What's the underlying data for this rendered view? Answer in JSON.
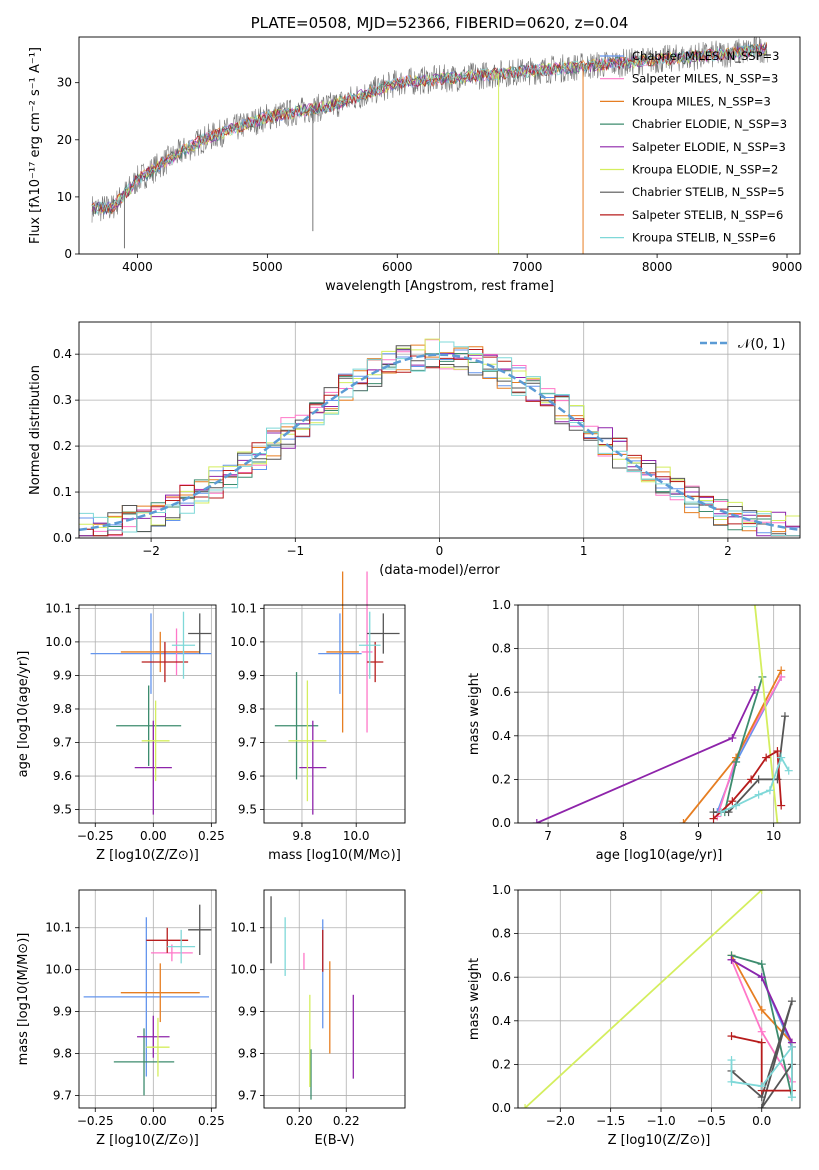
{
  "colors": {
    "chabrier_miles": "#6495ed",
    "salpeter_miles": "#ff77c8",
    "kroupa_miles": "#e67e22",
    "chabrier_elodie": "#3d8c6e",
    "salpeter_elodie": "#8e24aa",
    "kroupa_elodie": "#d4ee5e",
    "chabrier_stelib": "#555555",
    "salpeter_stelib": "#b71c1c",
    "kroupa_stelib": "#7fd8d8",
    "gauss": "#5b9bd5",
    "data_line": "#777777"
  },
  "chart_data": [
    {
      "type": "line",
      "title": "PLATE=0508, MJD=52366, FIBERID=0620, z=0.04",
      "xlabel": "wavelength [Angstrom, rest frame]",
      "ylabel": "Flux [fλ10⁻¹⁷ erg cm⁻² s⁻¹ A⁻¹]",
      "xlim": [
        3550,
        9100
      ],
      "ylim": [
        0,
        38
      ],
      "xticks": [
        "4000",
        "5000",
        "6000",
        "7000",
        "8000",
        "9000"
      ],
      "yticks": [
        "0",
        "10",
        "20",
        "30"
      ],
      "legend_position": "upper-right",
      "legend": [
        {
          "label": "Chabrier MILES, N_SSP=3",
          "color_key": "chabrier_miles"
        },
        {
          "label": "Salpeter MILES, N_SSP=3",
          "color_key": "salpeter_miles"
        },
        {
          "label": "Kroupa MILES, N_SSP=3",
          "color_key": "kroupa_miles"
        },
        {
          "label": "Chabrier ELODIE, N_SSP=3",
          "color_key": "chabrier_elodie"
        },
        {
          "label": "Salpeter ELODIE, N_SSP=3",
          "color_key": "salpeter_elodie"
        },
        {
          "label": "Kroupa ELODIE, N_SSP=2",
          "color_key": "kroupa_elodie"
        },
        {
          "label": "Chabrier STELIB, N_SSP=5",
          "color_key": "chabrier_stelib"
        },
        {
          "label": "Salpeter STELIB, N_SSP=6",
          "color_key": "salpeter_stelib"
        },
        {
          "label": "Kroupa STELIB, N_SSP=6",
          "color_key": "kroupa_stelib"
        }
      ],
      "spectrum_anchors": {
        "x": [
          3650,
          3800,
          4000,
          4200,
          4500,
          5000,
          5500,
          6000,
          6500,
          7000,
          7500,
          8000,
          8500,
          8850
        ],
        "y": [
          8,
          8,
          13,
          16,
          20,
          24,
          26,
          30,
          31,
          32,
          33,
          34,
          35,
          36
        ]
      },
      "spectrum_spikes": [
        {
          "x": 5350,
          "y": 4
        },
        {
          "x": 6780,
          "y": 0
        },
        {
          "x": 7430,
          "y": 0
        },
        {
          "x": 3900,
          "y": 1
        }
      ]
    },
    {
      "type": "histogram",
      "xlabel": "(data-model)/error",
      "ylabel": "Normed distribution",
      "xlim": [
        -2.5,
        2.5
      ],
      "ylim": [
        0,
        0.47
      ],
      "xticks": [
        "−2",
        "−1",
        "0",
        "1",
        "2"
      ],
      "yticks": [
        "0.0",
        "0.1",
        "0.2",
        "0.3",
        "0.4"
      ],
      "legend_position": "upper-right",
      "legend": [
        {
          "label": "𝒩(0, 1)",
          "color_key": "gauss",
          "style": "dashed"
        }
      ],
      "bin_width": 0.1,
      "gaussian": {
        "mu": 0,
        "sigma": 1
      }
    },
    {
      "type": "scatter-errorbar",
      "xlabel": "Z [log10(Z/Z⊙)]",
      "ylabel": "age [log10(age/yr)]",
      "xlim": [
        -0.32,
        0.27
      ],
      "ylim": [
        9.46,
        10.11
      ],
      "xticks": [
        "−0.25",
        "0.00",
        "0.25"
      ],
      "yticks": [
        "9.5",
        "9.6",
        "9.7",
        "9.8",
        "9.9",
        "10.0",
        "10.1"
      ],
      "series": [
        {
          "color_key": "chabrier_miles",
          "x": -0.01,
          "y": 9.965,
          "xerr": 0.26,
          "yerr": 0.12
        },
        {
          "color_key": "salpeter_miles",
          "x": 0.1,
          "y": 9.97,
          "xerr": 0.09,
          "yerr": 0.07
        },
        {
          "color_key": "kroupa_miles",
          "x": 0.03,
          "y": 9.97,
          "xerr": 0.17,
          "yerr": 0.06
        },
        {
          "color_key": "chabrier_elodie",
          "x": -0.02,
          "y": 9.75,
          "xerr": 0.14,
          "yerr": 0.12
        },
        {
          "color_key": "salpeter_elodie",
          "x": 0.0,
          "y": 9.625,
          "xerr": 0.08,
          "yerr": 0.14
        },
        {
          "color_key": "kroupa_elodie",
          "x": 0.01,
          "y": 9.705,
          "xerr": 0.06,
          "yerr": 0.12
        },
        {
          "color_key": "chabrier_stelib",
          "x": 0.2,
          "y": 10.025,
          "xerr": 0.05,
          "yerr": 0.06
        },
        {
          "color_key": "salpeter_stelib",
          "x": 0.05,
          "y": 9.94,
          "xerr": 0.1,
          "yerr": 0.06
        },
        {
          "color_key": "kroupa_stelib",
          "x": 0.13,
          "y": 9.99,
          "xerr": 0.05,
          "yerr": 0.1
        }
      ]
    },
    {
      "type": "scatter-errorbar",
      "xlabel": "mass [log10(M/M⊙)]",
      "ylabel": "",
      "xlim": [
        9.66,
        10.18
      ],
      "ylim": [
        9.46,
        10.11
      ],
      "xticks": [
        "9.8",
        "10.0"
      ],
      "yticks": [
        "9.5",
        "9.6",
        "9.7",
        "9.8",
        "9.9",
        "10.0",
        "10.1"
      ],
      "series": [
        {
          "color_key": "chabrier_miles",
          "x": 9.94,
          "y": 9.965,
          "xerr": 0.08,
          "yerr": 0.12
        },
        {
          "color_key": "salpeter_miles",
          "x": 10.04,
          "y": 9.97,
          "xerr": 0.02,
          "yerr": 0.24
        },
        {
          "color_key": "kroupa_miles",
          "x": 9.95,
          "y": 9.97,
          "xerr": 0.06,
          "yerr": 0.24
        },
        {
          "color_key": "chabrier_elodie",
          "x": 9.78,
          "y": 9.75,
          "xerr": 0.08,
          "yerr": 0.16
        },
        {
          "color_key": "salpeter_elodie",
          "x": 9.84,
          "y": 9.625,
          "xerr": 0.05,
          "yerr": 0.14
        },
        {
          "color_key": "kroupa_elodie",
          "x": 9.82,
          "y": 9.705,
          "xerr": 0.07,
          "yerr": 0.18
        },
        {
          "color_key": "chabrier_stelib",
          "x": 10.1,
          "y": 10.025,
          "xerr": 0.06,
          "yerr": 0.06
        },
        {
          "color_key": "salpeter_stelib",
          "x": 10.07,
          "y": 9.94,
          "xerr": 0.03,
          "yerr": 0.06
        },
        {
          "color_key": "kroupa_stelib",
          "x": 10.05,
          "y": 9.99,
          "xerr": 0.04,
          "yerr": 0.1
        }
      ]
    },
    {
      "type": "line",
      "xlabel": "age [log10(age/yr)]",
      "ylabel": "mass weight",
      "xlim": [
        6.6,
        10.35
      ],
      "ylim": [
        0,
        1.0
      ],
      "xticks": [
        "7",
        "8",
        "9",
        "10"
      ],
      "yticks": [
        "0.0",
        "0.2",
        "0.4",
        "0.6",
        "0.8",
        "1.0"
      ],
      "series": [
        {
          "color_key": "chabrier_miles",
          "x": [
            9.25,
            9.5,
            10.1
          ],
          "y": [
            0.05,
            0.28,
            0.67
          ]
        },
        {
          "color_key": "salpeter_miles",
          "x": [
            9.25,
            9.5,
            10.1
          ],
          "y": [
            0.03,
            0.3,
            0.67
          ]
        },
        {
          "color_key": "kroupa_miles",
          "x": [
            8.8,
            9.5,
            10.1
          ],
          "y": [
            0.0,
            0.3,
            0.7
          ]
        },
        {
          "color_key": "chabrier_elodie",
          "x": [
            9.35,
            9.5,
            9.85
          ],
          "y": [
            0.05,
            0.28,
            0.67
          ]
        },
        {
          "color_key": "salpeter_elodie",
          "x": [
            6.85,
            9.45,
            9.75
          ],
          "y": [
            0.0,
            0.39,
            0.61
          ]
        },
        {
          "color_key": "kroupa_elodie",
          "x": [
            9.75,
            10.05
          ],
          "y": [
            1.0,
            0.0
          ]
        },
        {
          "color_key": "chabrier_stelib",
          "x": [
            9.2,
            9.4,
            9.8,
            10.05,
            10.15
          ],
          "y": [
            0.05,
            0.05,
            0.2,
            0.2,
            0.49
          ]
        },
        {
          "color_key": "salpeter_stelib",
          "x": [
            9.2,
            9.45,
            9.7,
            9.9,
            10.05,
            10.1
          ],
          "y": [
            0.02,
            0.1,
            0.2,
            0.3,
            0.33,
            0.08
          ]
        },
        {
          "color_key": "kroupa_stelib",
          "x": [
            9.3,
            9.5,
            9.8,
            9.95,
            10.1,
            10.2
          ],
          "y": [
            0.05,
            0.08,
            0.13,
            0.15,
            0.3,
            0.24
          ]
        }
      ]
    },
    {
      "type": "scatter-errorbar",
      "xlabel": "Z [log10(Z/Z⊙)]",
      "ylabel": "mass [log10(M/M⊙)]",
      "xlim": [
        -0.32,
        0.27
      ],
      "ylim": [
        9.67,
        10.19
      ],
      "xticks": [
        "−0.25",
        "0.00",
        "0.25"
      ],
      "yticks": [
        "9.7",
        "9.8",
        "9.9",
        "10.0",
        "10.1"
      ],
      "series": [
        {
          "color_key": "chabrier_miles",
          "x": -0.03,
          "y": 9.935,
          "xerr": 0.27,
          "yerr": 0.19
        },
        {
          "color_key": "salpeter_miles",
          "x": 0.08,
          "y": 10.04,
          "xerr": 0.09,
          "yerr": 0.02
        },
        {
          "color_key": "kroupa_miles",
          "x": 0.03,
          "y": 9.945,
          "xerr": 0.17,
          "yerr": 0.07
        },
        {
          "color_key": "chabrier_elodie",
          "x": -0.04,
          "y": 9.78,
          "xerr": 0.13,
          "yerr": 0.08
        },
        {
          "color_key": "salpeter_elodie",
          "x": 0.0,
          "y": 9.84,
          "xerr": 0.07,
          "yerr": 0.05
        },
        {
          "color_key": "kroupa_elodie",
          "x": 0.02,
          "y": 9.815,
          "xerr": 0.05,
          "yerr": 0.07
        },
        {
          "color_key": "chabrier_stelib",
          "x": 0.2,
          "y": 10.095,
          "xerr": 0.05,
          "yerr": 0.06
        },
        {
          "color_key": "salpeter_stelib",
          "x": 0.06,
          "y": 10.07,
          "xerr": 0.09,
          "yerr": 0.03
        },
        {
          "color_key": "kroupa_stelib",
          "x": 0.12,
          "y": 10.055,
          "xerr": 0.06,
          "yerr": 0.04
        }
      ]
    },
    {
      "type": "scatter-errorbar",
      "xlabel": "E(B-V)",
      "ylabel": "",
      "xlim": [
        0.185,
        0.245
      ],
      "ylim": [
        9.67,
        10.19
      ],
      "xticks": [
        "0.20",
        "0.22"
      ],
      "yticks": [
        "9.7",
        "9.8",
        "9.9",
        "10.0",
        "10.1"
      ],
      "series": [
        {
          "color_key": "chabrier_miles",
          "x": 0.21,
          "y": 9.99,
          "xerr": 0,
          "yerr": 0.13
        },
        {
          "color_key": "salpeter_miles",
          "x": 0.202,
          "y": 10.02,
          "xerr": 0,
          "yerr": 0.02
        },
        {
          "color_key": "kroupa_miles",
          "x": 0.213,
          "y": 9.91,
          "xerr": 0,
          "yerr": 0.11
        },
        {
          "color_key": "chabrier_elodie",
          "x": 0.205,
          "y": 9.75,
          "xerr": 0,
          "yerr": 0.06
        },
        {
          "color_key": "salpeter_elodie",
          "x": 0.223,
          "y": 9.84,
          "xerr": 0,
          "yerr": 0.1
        },
        {
          "color_key": "kroupa_elodie",
          "x": 0.2045,
          "y": 9.83,
          "xerr": 0,
          "yerr": 0.11
        },
        {
          "color_key": "chabrier_stelib",
          "x": 0.188,
          "y": 10.095,
          "xerr": 0,
          "yerr": 0.08
        },
        {
          "color_key": "salpeter_stelib",
          "x": 0.21,
          "y": 10.045,
          "xerr": 0,
          "yerr": 0.05
        },
        {
          "color_key": "kroupa_stelib",
          "x": 0.194,
          "y": 10.055,
          "xerr": 0,
          "yerr": 0.07
        }
      ]
    },
    {
      "type": "line",
      "xlabel": "Z [log10(Z/Z⊙)]",
      "ylabel": "mass weight",
      "xlim": [
        -2.42,
        0.38
      ],
      "ylim": [
        0,
        1.0
      ],
      "xticks": [
        "−2.0",
        "−1.5",
        "−1.0",
        "−0.5",
        "0.0"
      ],
      "yticks": [
        "0.0",
        "0.2",
        "0.4",
        "0.6",
        "0.8",
        "1.0"
      ],
      "series": [
        {
          "color_key": "chabrier_miles",
          "x": [
            -0.3,
            0.0,
            0.3
          ],
          "y": [
            0.68,
            0.6,
            0.28
          ]
        },
        {
          "color_key": "salpeter_miles",
          "x": [
            -0.3,
            0.0,
            0.3
          ],
          "y": [
            0.68,
            0.35,
            0.12
          ]
        },
        {
          "color_key": "kroupa_miles",
          "x": [
            -0.3,
            0.0,
            0.3
          ],
          "y": [
            0.7,
            0.45,
            0.3
          ]
        },
        {
          "color_key": "chabrier_elodie",
          "x": [
            -0.3,
            0.0,
            0.3
          ],
          "y": [
            0.7,
            0.66,
            0.05
          ]
        },
        {
          "color_key": "salpeter_elodie",
          "x": [
            -0.3,
            0.0,
            0.3
          ],
          "y": [
            0.68,
            0.6,
            0.3
          ]
        },
        {
          "color_key": "kroupa_elodie",
          "x": [
            -2.35,
            0.0
          ],
          "y": [
            0.0,
            1.0
          ]
        },
        {
          "color_key": "chabrier_stelib",
          "x": [
            -0.3,
            0.0,
            0.3,
            0.0,
            0.3
          ],
          "y": [
            0.17,
            0.05,
            0.49,
            0.0,
            0.2
          ]
        },
        {
          "color_key": "salpeter_stelib",
          "x": [
            -0.3,
            0.0,
            0.0,
            0.3,
            0.3
          ],
          "y": [
            0.33,
            0.3,
            0.08,
            0.08,
            0.28
          ]
        },
        {
          "color_key": "kroupa_stelib",
          "x": [
            -0.3,
            -0.3,
            0.0,
            0.3,
            0.3
          ],
          "y": [
            0.22,
            0.12,
            0.1,
            0.28,
            0.05
          ]
        }
      ]
    }
  ]
}
